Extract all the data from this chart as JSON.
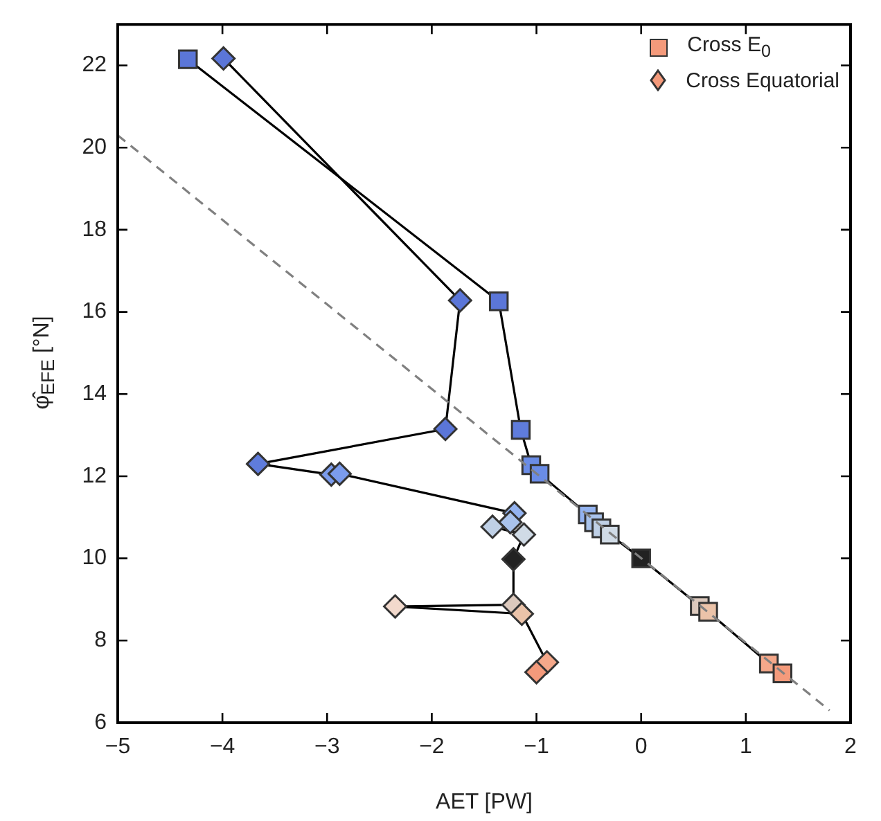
{
  "chart_data": {
    "type": "line",
    "xlabel": "AET [PW]",
    "ylabel": "φ̂$_{EFE}$ [°N]",
    "xlim": [
      -5,
      2
    ],
    "ylim": [
      6,
      23
    ],
    "xticks": [
      -5,
      -4,
      -3,
      -2,
      -1,
      0,
      1,
      2
    ],
    "yticks": [
      6,
      8,
      10,
      12,
      14,
      16,
      18,
      20,
      22
    ],
    "grid": false,
    "legend": "top right",
    "series": [
      {
        "line_style": "dashed",
        "marker": "none",
        "color": "#808080",
        "x": [
          -5,
          1.8
        ],
        "values": [
          20.3,
          6.3
        ]
      },
      {
        "name": "Cross E$_{0}$",
        "marker": "square",
        "color": "#000000",
        "x": [
          -4.33,
          -1.36,
          -1.15,
          -1.05,
          -0.97,
          -0.51,
          -0.45,
          -0.38,
          -0.3,
          0,
          0.56,
          0.64,
          1.22,
          1.35
        ],
        "values": [
          22.15,
          16.26,
          13.13,
          12.27,
          12.06,
          11.07,
          10.88,
          10.73,
          10.58,
          10,
          8.84,
          8.7,
          7.44,
          7.2
        ],
        "colors": [
          "#5b76d8",
          "#5b76d8",
          "#5f7cdc",
          "#6a8ce6",
          "#6a8ce6",
          "#93b3f0",
          "#a9c3ec",
          "#bfd0e6",
          "#d0dbe6",
          "#222222",
          "#dcc9bd",
          "#ebc3a9",
          "#f5a88a",
          "#f49a7b"
        ]
      },
      {
        "name": "Cross Equatorial",
        "marker": "diamond",
        "color": "#000000",
        "x": [
          -3.99,
          -1.73,
          -1.87,
          -3.66,
          -2.96,
          -2.88,
          -1.21,
          -1.25,
          -1.42,
          -1.12,
          -1.22,
          -1.22,
          -2.35,
          -1.14,
          -0.9,
          -1.0
        ],
        "values": [
          22.17,
          16.28,
          13.15,
          12.3,
          12.04,
          12.06,
          11.1,
          10.88,
          10.77,
          10.58,
          9.98,
          8.87,
          8.83,
          8.65,
          7.47,
          7.23
        ],
        "colors": [
          "#5b76d8",
          "#5b76d8",
          "#5b76d8",
          "#5f7cdc",
          "#7b9ced",
          "#7b9ced",
          "#93b3f0",
          "#a9c3ec",
          "#bfd0e6",
          "#d0dbe6",
          "#222222",
          "#dcc9bd",
          "#f2d9cc",
          "#ebc3a9",
          "#f5a88a",
          "#f49a7b"
        ]
      }
    ]
  }
}
